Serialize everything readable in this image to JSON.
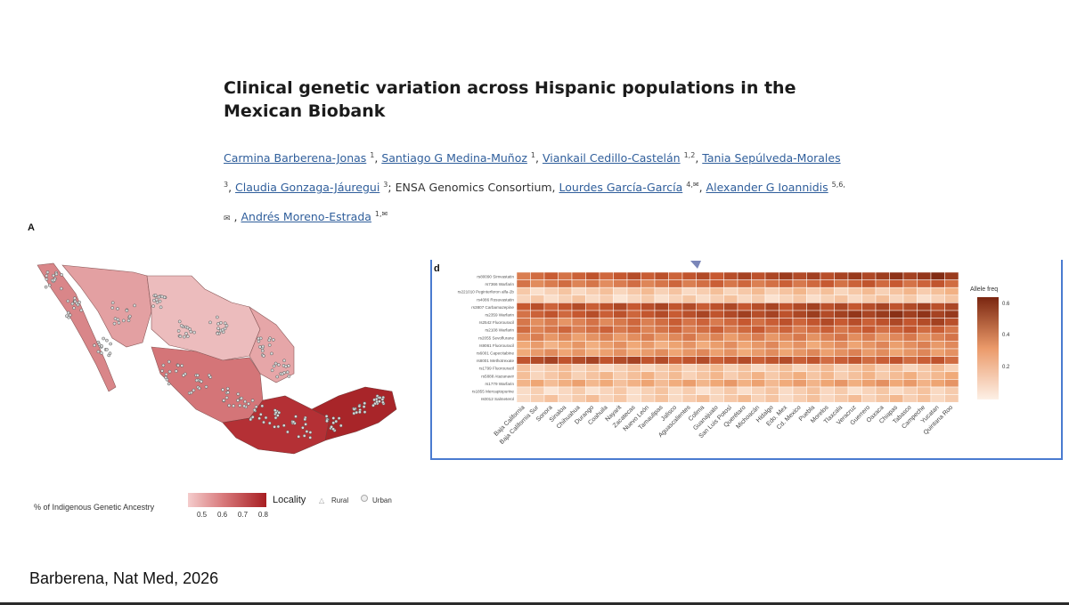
{
  "paper": {
    "title": "Clinical genetic variation across Hispanic populations in the Mexican Biobank",
    "authors_line1": [
      {
        "name": "Carmina Barberena-Jonas",
        "sup": "1"
      },
      {
        "name": "Santiago G Medina-Muñoz",
        "sup": "1"
      },
      {
        "name": "Viankail Cedillo-Castelán",
        "sup": "1,2"
      },
      {
        "name": "Tania Sepúlveda-Morales",
        "sup": ""
      }
    ],
    "authors_line2_pre_sup": "3",
    "authors_line2": [
      {
        "name": "Claudia Gonzaga-Jáuregui",
        "sup": "3"
      }
    ],
    "consortium": "ENSA Genomics Consortium,",
    "authors_line2b": [
      {
        "name": "Lourdes García-García",
        "sup": "4,✉"
      },
      {
        "name": "Alexander G Ioannidis",
        "sup": "5,6,"
      }
    ],
    "line3_mail": "✉",
    "authors_line3": [
      {
        "name": "Andrés Moreno-Estrada",
        "sup": "1,✉"
      }
    ]
  },
  "figure_a": {
    "panel_label": "A",
    "legend_title": "% of Indigenous Genetic Ancestry",
    "legend_ticks": [
      "0.5",
      "0.6",
      "0.7",
      "0.8"
    ],
    "locality_title": "Locality",
    "locality_items": [
      "Rural",
      "Urban"
    ],
    "colors": {
      "low": "#f4cccc",
      "mid": "#d8797b",
      "high": "#a81e22"
    }
  },
  "figure_d": {
    "panel_label": "d",
    "legend_title": "Allele freq",
    "legend_ticks": [
      "0.6",
      "0.4",
      "0.2"
    ],
    "accent_border": "#4a7bd0"
  },
  "chart_data": {
    "type": "heatmap",
    "title": "",
    "xlabel": "",
    "ylabel": "",
    "legend": "Allele freq",
    "scale": [
      0,
      0.65
    ],
    "x": [
      "Baja California",
      "Baja California Sur",
      "Sonora",
      "Sinaloa",
      "Chihuahua",
      "Durango",
      "Coahuila",
      "Nayarit",
      "Zacatecas",
      "Nuevo León",
      "Tamaulipas",
      "Jalisco",
      "Aguascalientes",
      "Colima",
      "Guanajuato",
      "San Luis Potosí",
      "Querétaro",
      "Michoacán",
      "Hidalgo",
      "Edo. Mex",
      "Cd. Mexico",
      "Puebla",
      "Morelos",
      "Tlaxcala",
      "Veracruz",
      "Guerrero",
      "Oaxaca",
      "Chiapas",
      "Tabasco",
      "Campeche",
      "Yucatan",
      "Quintana Roo"
    ],
    "y": [
      "rs80090 Simvastatin",
      "rs7366 Warfarin",
      "rs221010 Peginterferon alfa-2b",
      "rs4086 Rosuvastatin",
      "rs3807 Carbamazepine",
      "rs2359 Warfarin",
      "rs2542 Fluorouracil",
      "rs2108 Warfarin",
      "rs2055 Sevoflurane",
      "rs9061 Fluorouracil",
      "rs6001 Capecitabine",
      "rs8001 Methotrexate",
      "rs1799 Fluorouracil",
      "rs5888 Atazanavir",
      "rs1779 Warfarin",
      "rs1855 Mercaptopurine",
      "rs0012 Salmeterol"
    ],
    "row_base": [
      0.38,
      0.32,
      0.1,
      0.08,
      0.45,
      0.4,
      0.3,
      0.35,
      0.28,
      0.22,
      0.24,
      0.5,
      0.1,
      0.13,
      0.18,
      0.08,
      0.1
    ],
    "row_trend": [
      0.2,
      0.1,
      0.04,
      0.02,
      0.05,
      0.18,
      0.2,
      0.05,
      0.04,
      0.06,
      0.04,
      -0.1,
      0.03,
      0.03,
      0.06,
      0.02,
      0.02
    ]
  },
  "caption": "Barberena, Nat Med, 2026"
}
